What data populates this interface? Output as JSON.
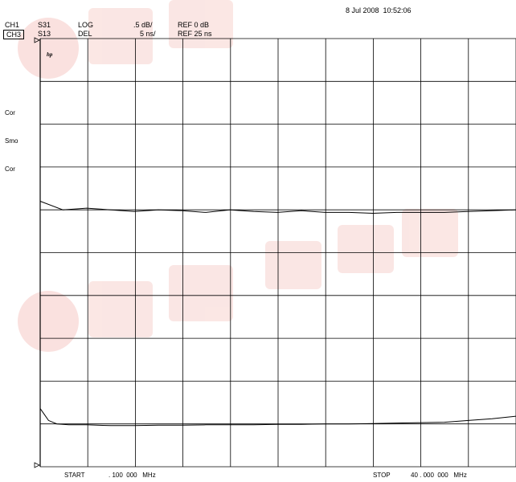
{
  "timestamp": "8 Jul 2008  10:52:06",
  "channels": [
    {
      "ch": "CH1",
      "param": "S31",
      "format": "LOG",
      "scale": ".5 dB/",
      "ref": "REF 0 dB"
    },
    {
      "ch": "CH3",
      "param": "S13",
      "format": "DEL",
      "scale": "5 ns/",
      "ref": "REF 25 ns"
    }
  ],
  "side_labels": [
    "Cor",
    "Smo",
    "Cor"
  ],
  "logo": "hp",
  "footer": {
    "start_label": "START",
    "start_value": ". 100  000   MHz",
    "stop_label": "STOP",
    "stop_value": "40 . 000  000   MHz"
  },
  "chart_data": {
    "type": "line",
    "grid": true,
    "divisions": {
      "x": 10,
      "y": 10
    },
    "x_unit": "MHz",
    "xlim": [
      0.1,
      40.0
    ],
    "series": [
      {
        "name": "S31",
        "unit": "dB",
        "ylim": [
          -2.5,
          2.5
        ],
        "x": [
          0.1,
          2.0,
          4.0,
          6.0,
          8.0,
          10.0,
          12.0,
          14.0,
          16.0,
          18.0,
          20.0,
          22.0,
          24.0,
          26.0,
          28.0,
          30.0,
          32.0,
          34.0,
          36.0,
          38.0,
          40.0
        ],
        "values": [
          0.6,
          0.5,
          0.52,
          0.5,
          0.48,
          0.5,
          0.49,
          0.47,
          0.5,
          0.48,
          0.47,
          0.49,
          0.47,
          0.47,
          0.46,
          0.47,
          0.47,
          0.47,
          0.48,
          0.49,
          0.5
        ]
      },
      {
        "name": "S13",
        "unit": "ns",
        "ylim": [
          0,
          50
        ],
        "x": [
          0.1,
          0.4,
          0.8,
          1.5,
          2.5,
          4.0,
          6.0,
          8.0,
          10.0,
          12.0,
          14.0,
          16.0,
          18.0,
          20.0,
          22.0,
          24.0,
          26.0,
          28.0,
          30.0,
          32.0,
          34.0,
          36.0,
          38.0,
          40.0
        ],
        "values": [
          6.8,
          6.2,
          5.4,
          5.0,
          4.9,
          4.9,
          4.8,
          4.8,
          4.85,
          4.85,
          4.9,
          4.9,
          4.9,
          4.95,
          4.95,
          5.0,
          5.0,
          5.05,
          5.1,
          5.15,
          5.2,
          5.4,
          5.6,
          5.9
        ]
      }
    ]
  }
}
